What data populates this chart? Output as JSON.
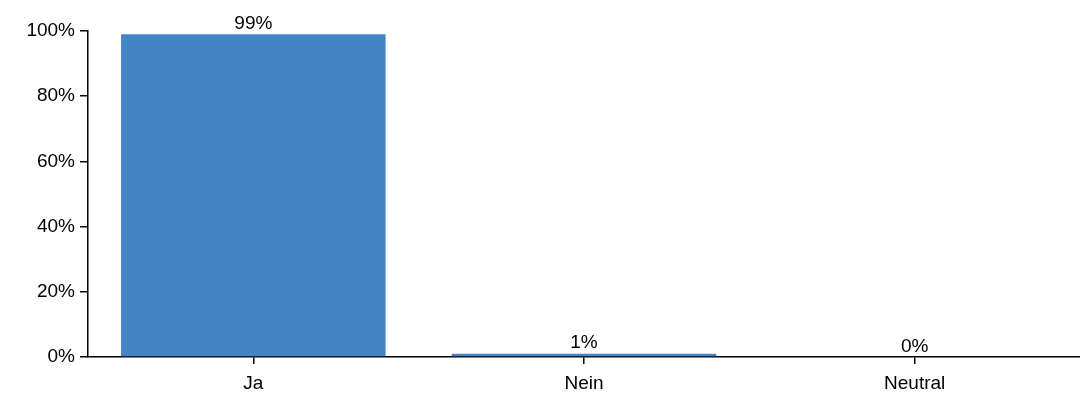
{
  "chart_data": {
    "type": "bar",
    "categories": [
      "Ja",
      "Nein",
      "Neutral"
    ],
    "values": [
      99,
      1,
      0
    ],
    "color": "#4384c6",
    "ylim": [
      0,
      100
    ],
    "yticks": [
      {
        "value": 0,
        "label": "0%"
      },
      {
        "value": 20,
        "label": "20%"
      },
      {
        "value": 40,
        "label": "40%"
      },
      {
        "value": 60,
        "label": "60%"
      },
      {
        "value": 80,
        "label": "80%"
      },
      {
        "value": 100,
        "label": "100%"
      }
    ],
    "value_labels": [
      "99%",
      "1%",
      "0%"
    ]
  }
}
